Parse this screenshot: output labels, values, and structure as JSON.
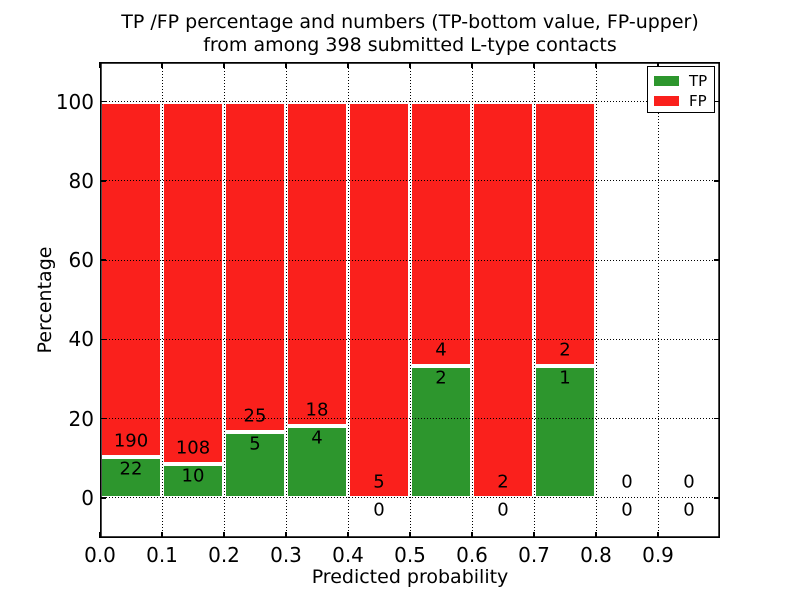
{
  "chart_data": {
    "type": "bar",
    "stacked": true,
    "unit": "percent of bin total",
    "title": "TP /FP percentage and numbers (TP-bottom value, FP-upper)\nfrom among 398 submitted L-type contacts",
    "title_lines": [
      "TP /FP percentage and numbers (TP-bottom value, FP-upper)",
      "from among 398 submitted L-type contacts"
    ],
    "xlabel": "Predicted probability",
    "ylabel": "Percentage",
    "xlim": [
      0.0,
      1.0
    ],
    "ylim": [
      -10,
      110
    ],
    "x_tick_labels": [
      "0.0",
      "0.1",
      "0.2",
      "0.3",
      "0.4",
      "0.5",
      "0.6",
      "0.7",
      "0.8",
      "0.9"
    ],
    "x_tick_values": [
      0.0,
      0.1,
      0.2,
      0.3,
      0.4,
      0.5,
      0.6,
      0.7,
      0.8,
      0.9
    ],
    "y_tick_values": [
      0,
      20,
      40,
      60,
      80,
      100
    ],
    "grid": "dotted",
    "bin_width": 0.1,
    "bin_starts": [
      0.0,
      0.1,
      0.2,
      0.3,
      0.4,
      0.5,
      0.6,
      0.7,
      0.8,
      0.9
    ],
    "series": [
      {
        "name": "TP",
        "color": "#2D962D",
        "counts": [
          22,
          10,
          5,
          4,
          0,
          2,
          0,
          1,
          0,
          0
        ]
      },
      {
        "name": "FP",
        "color": "#FA201C",
        "counts": [
          190,
          108,
          25,
          18,
          5,
          4,
          2,
          2,
          0,
          0
        ]
      }
    ],
    "tp_percent_of_bin": [
      10.4,
      8.5,
      16.7,
      18.2,
      0.0,
      33.3,
      0.0,
      33.3,
      null,
      null
    ],
    "total_contacts": 398,
    "legend": {
      "position": "upper right"
    },
    "colors": {
      "bar_edge": "#ffffff",
      "grid": "#000000",
      "background": "#ffffff",
      "text": "#000000"
    }
  }
}
